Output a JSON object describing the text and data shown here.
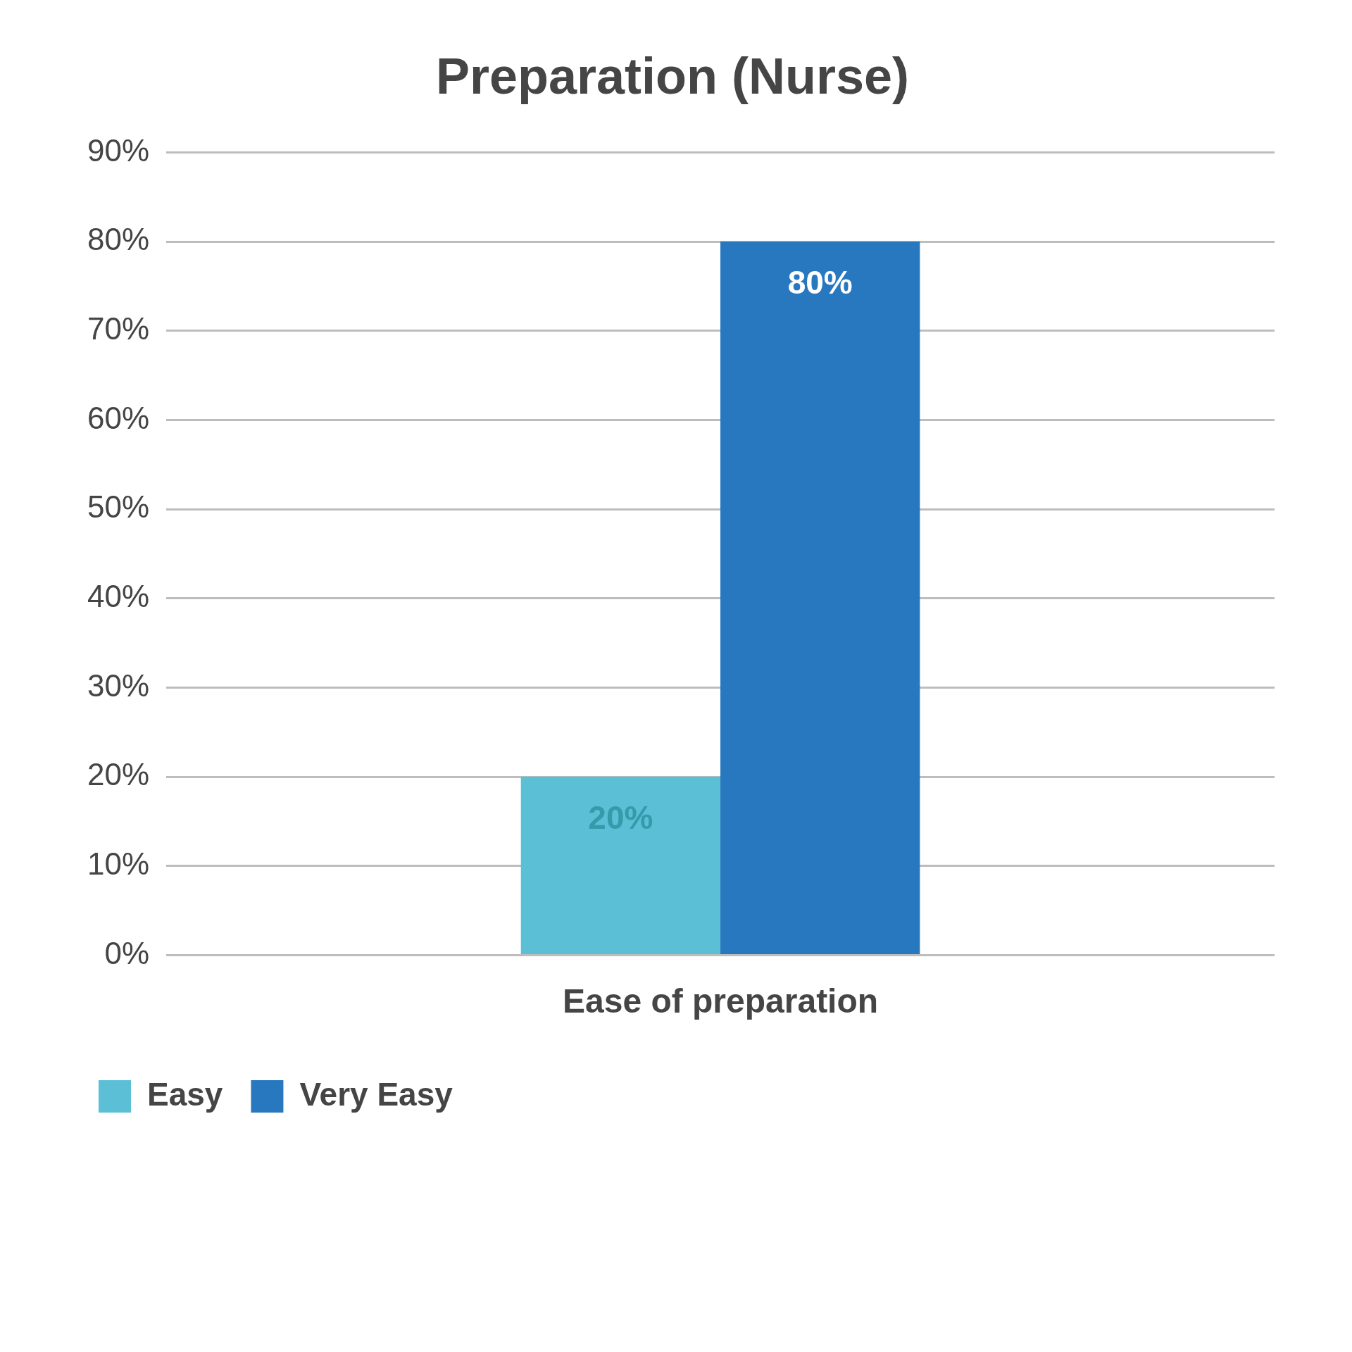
{
  "chart_data": {
    "type": "bar",
    "title": "Preparation (Nurse)",
    "categories": [
      "Ease of preparation"
    ],
    "series": [
      {
        "name": "Easy",
        "color": "#5bc0d6",
        "values": [
          20
        ],
        "value_labels": [
          "20%"
        ]
      },
      {
        "name": "Very Easy",
        "color": "#2878c0",
        "values": [
          80
        ],
        "value_labels": [
          "80%"
        ]
      }
    ],
    "ylim": [
      0,
      90
    ],
    "yticks": [
      {
        "value": 0,
        "label": "0%"
      },
      {
        "value": 10,
        "label": "10%"
      },
      {
        "value": 20,
        "label": "20%"
      },
      {
        "value": 30,
        "label": "30%"
      },
      {
        "value": 40,
        "label": "40%"
      },
      {
        "value": 50,
        "label": "50%"
      },
      {
        "value": 60,
        "label": "60%"
      },
      {
        "value": 70,
        "label": "70%"
      },
      {
        "value": 80,
        "label": "80%"
      },
      {
        "value": 90,
        "label": "90%"
      }
    ],
    "grid": "y",
    "legend": "bottom left"
  }
}
